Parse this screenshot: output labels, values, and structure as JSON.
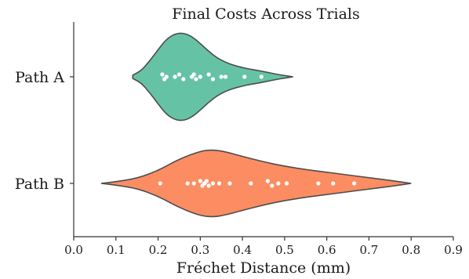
{
  "chart_data": {
    "type": "violin",
    "orientation": "horizontal",
    "title": "Final Costs Across Trials",
    "xlabel": "Fréchet Distance (mm)",
    "ylabel": "",
    "xlim": [
      0.0,
      0.9
    ],
    "xticks": [
      "0.0",
      "0.1",
      "0.2",
      "0.3",
      "0.4",
      "0.5",
      "0.6",
      "0.7",
      "0.8",
      "0.9"
    ],
    "grid": false,
    "legend": "none",
    "series": [
      {
        "name": "Path A",
        "color": "#66c2a5",
        "range": [
          0.14,
          0.52
        ],
        "profile": [
          [
            0.14,
            0.04
          ],
          [
            0.16,
            0.14
          ],
          [
            0.18,
            0.36
          ],
          [
            0.2,
            0.62
          ],
          [
            0.22,
            0.86
          ],
          [
            0.24,
            0.98
          ],
          [
            0.26,
            1.0
          ],
          [
            0.28,
            0.92
          ],
          [
            0.3,
            0.76
          ],
          [
            0.32,
            0.58
          ],
          [
            0.34,
            0.43
          ],
          [
            0.36,
            0.33
          ],
          [
            0.38,
            0.26
          ],
          [
            0.4,
            0.21
          ],
          [
            0.42,
            0.17
          ],
          [
            0.44,
            0.14
          ],
          [
            0.46,
            0.1
          ],
          [
            0.48,
            0.06
          ],
          [
            0.5,
            0.03
          ],
          [
            0.52,
            0.0
          ]
        ],
        "points": [
          0.21,
          0.215,
          0.22,
          0.24,
          0.25,
          0.26,
          0.28,
          0.285,
          0.29,
          0.3,
          0.32,
          0.33,
          0.35,
          0.36,
          0.405,
          0.445
        ],
        "point_offsets": [
          -1,
          1,
          0,
          0,
          -1,
          1,
          0,
          -1,
          1,
          0,
          -1,
          1,
          0,
          0,
          0,
          0
        ]
      },
      {
        "name": "Path B",
        "color": "#fc8d62",
        "range": [
          0.065,
          0.8
        ],
        "profile": [
          [
            0.065,
            0.0
          ],
          [
            0.1,
            0.05
          ],
          [
            0.15,
            0.15
          ],
          [
            0.2,
            0.38
          ],
          [
            0.25,
            0.72
          ],
          [
            0.3,
            0.96
          ],
          [
            0.33,
            1.0
          ],
          [
            0.36,
            0.94
          ],
          [
            0.4,
            0.8
          ],
          [
            0.45,
            0.64
          ],
          [
            0.5,
            0.51
          ],
          [
            0.55,
            0.41
          ],
          [
            0.6,
            0.33
          ],
          [
            0.65,
            0.25
          ],
          [
            0.7,
            0.17
          ],
          [
            0.75,
            0.09
          ],
          [
            0.8,
            0.0
          ]
        ],
        "points": [
          0.205,
          0.27,
          0.285,
          0.3,
          0.305,
          0.31,
          0.315,
          0.32,
          0.33,
          0.345,
          0.37,
          0.42,
          0.46,
          0.47,
          0.485,
          0.505,
          0.58,
          0.615,
          0.665
        ],
        "point_offsets": [
          0,
          0,
          0,
          -1,
          1,
          0,
          -1,
          1,
          0,
          0,
          0,
          0,
          -1,
          1,
          0,
          0,
          0,
          0,
          0
        ]
      }
    ]
  }
}
